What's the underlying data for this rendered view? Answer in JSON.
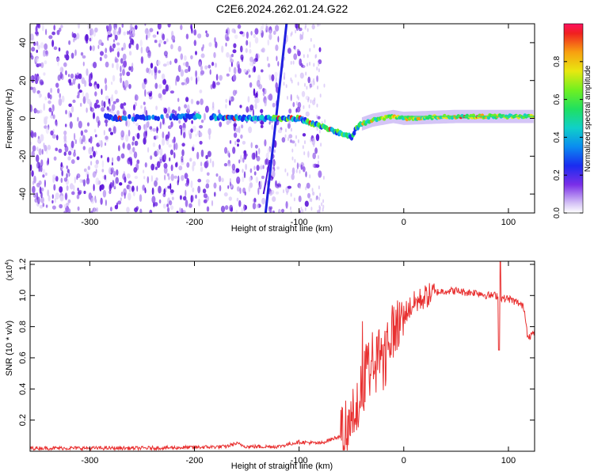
{
  "title": "C2E6.2024.262.01.24.G22",
  "chart_data": [
    {
      "type": "heatmap",
      "xlabel": "Height of straight line (km)",
      "ylabel": "Frequency (Hz)",
      "xlim": [
        -357,
        125
      ],
      "ylim": [
        -50,
        50
      ],
      "x_ticks": [
        -300,
        -200,
        -100,
        0,
        100
      ],
      "y_ticks": [
        -40,
        -20,
        0,
        20,
        40
      ],
      "colorbar": {
        "label": "Normalized spectral amplitude",
        "range": [
          0,
          1
        ],
        "ticks": [
          "0.0",
          "0.2",
          "0.4",
          "0.6",
          "0.8"
        ]
      },
      "ridge": {
        "description_points_x": [
          -280,
          -200,
          -150,
          -120,
          -100,
          -80,
          -60,
          -50,
          -45,
          -40,
          -30,
          -20,
          -10,
          0,
          50,
          100,
          125
        ],
        "description_points_y": [
          0,
          1,
          0,
          0,
          0,
          -4,
          -8,
          -10,
          -5,
          -3,
          -1,
          0,
          1,
          0,
          1,
          1,
          1
        ]
      },
      "noise_region_x": [
        -357,
        -80
      ],
      "streak": {
        "x_start": -132,
        "y_start": -50,
        "x_end": -112,
        "y_end": 50
      }
    },
    {
      "type": "line",
      "xlabel": "Height of straight line (km)",
      "ylabel": "SNR (10 * v/v)",
      "y_multiplier": "(x10",
      "y_multiplier_exp": "4",
      "xlim": [
        -357,
        125
      ],
      "ylim": [
        0,
        1.22
      ],
      "x_ticks": [
        -300,
        -200,
        -100,
        0,
        100
      ],
      "y_ticks": [
        0.2,
        0.4,
        0.6,
        0.8,
        1.0,
        1.2
      ],
      "y_tick_labels": [
        "0.2",
        "0.4",
        "0.6",
        "0.8",
        "1.0",
        "1.2"
      ],
      "series": [
        {
          "color": "#e83030",
          "x": [
            -357,
            -300,
            -250,
            -200,
            -170,
            -160,
            -150,
            -120,
            -100,
            -80,
            -60,
            -50,
            -45,
            -40,
            -35,
            -30,
            -25,
            -20,
            -15,
            -10,
            -5,
            0,
            10,
            20,
            30,
            40,
            50,
            60,
            70,
            80,
            90,
            95,
            100,
            110,
            115,
            118,
            120,
            125
          ],
          "y": [
            0.02,
            0.02,
            0.02,
            0.025,
            0.03,
            0.05,
            0.03,
            0.03,
            0.06,
            0.05,
            0.1,
            0.2,
            0.3,
            0.4,
            0.55,
            0.6,
            0.62,
            0.68,
            0.72,
            0.78,
            0.82,
            0.88,
            0.95,
            0.99,
            1.02,
            1.03,
            1.03,
            1.02,
            1.02,
            1.0,
            1.0,
            0.98,
            0.98,
            0.95,
            0.92,
            0.76,
            0.74,
            0.76
          ]
        }
      ]
    }
  ]
}
